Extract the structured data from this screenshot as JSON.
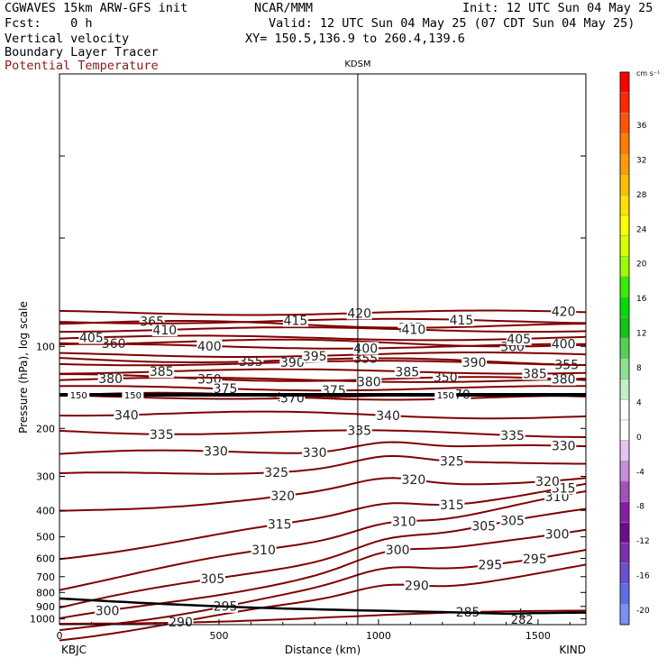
{
  "header": {
    "line1_left": "CGWAVES 15km ARW-GFS init",
    "line1_mid": "NCAR/MMM",
    "line1_right": "Init: 12 UTC Sun 04 May 25",
    "line2_left": "Fcst:    0 h",
    "line2_right": "Valid: 12 UTC Sun 04 May 25 (07 CDT Sun 04 May 25)",
    "line3_left": "Vertical velocity",
    "line3_right": "XY= 150.5,136.9 to 260.4,139.6",
    "line4_left": "Boundary Layer Tracer",
    "line5_left": "Potential Temperature"
  },
  "colors": {
    "theta": "#800000",
    "tracer": "#000000"
  },
  "chart_data": {
    "type": "contour",
    "title": "",
    "xlabel": "Distance (km)",
    "ylabel": "Pressure (hPa), log scale",
    "xlim": [
      0,
      1650
    ],
    "ylim": [
      1050,
      10
    ],
    "yscale": "log",
    "x_ticks": [
      0,
      500,
      1000,
      1500
    ],
    "y_ticks": [
      100,
      200,
      300,
      400,
      500,
      600,
      700,
      800,
      900,
      1000
    ],
    "endpoints": {
      "left": "KBJC",
      "right": "KIND"
    },
    "station_marker": {
      "name": "KDSM",
      "x_km": 935
    },
    "tracer_level": {
      "value": "150",
      "pressure_hPa": 157
    },
    "colorbar": {
      "unit": "cm s⁻¹",
      "ticks": [
        "36",
        "32",
        "28",
        "24",
        "20",
        "16",
        "12",
        "8",
        "4",
        "0",
        "-4",
        "-8",
        "-12",
        "-16",
        "-20"
      ],
      "colors": [
        "#ff0000",
        "#ff2a00",
        "#ff5500",
        "#ff7a00",
        "#ff9b00",
        "#ffbf00",
        "#ffe100",
        "#ffff00",
        "#d7ff00",
        "#9bff00",
        "#35ee00",
        "#00dd00",
        "#11c711",
        "#55d055",
        "#8ee18e",
        "#c3f0c3",
        "#ffffff",
        "#ffffff",
        "#e6c4ef",
        "#c78fd8",
        "#a64fbe",
        "#8a1ca5",
        "#6e0b8a",
        "#7a2fb0",
        "#6a4fd0",
        "#5f6ee6",
        "#7a90f5"
      ]
    },
    "isentropes": [
      {
        "theta": 285,
        "label_x_km": [
          1280
        ]
      },
      {
        "theta": 290,
        "label_x_km": [
          380,
          1120
        ]
      },
      {
        "theta": 295,
        "label_x_km": [
          520,
          1350,
          1490
        ]
      },
      {
        "theta": 300,
        "label_x_km": [
          150,
          1060,
          1560
        ]
      },
      {
        "theta": 305,
        "label_x_km": [
          480,
          1330,
          1420
        ]
      },
      {
        "theta": 310,
        "label_x_km": [
          640,
          1080,
          1560
        ]
      },
      {
        "theta": 315,
        "label_x_km": [
          690,
          1230,
          1580
        ]
      },
      {
        "theta": 320,
        "label_x_km": [
          700,
          1110,
          1530
        ]
      },
      {
        "theta": 325,
        "label_x_km": [
          680,
          1230
        ]
      },
      {
        "theta": 330,
        "label_x_km": [
          490,
          800,
          1580
        ]
      },
      {
        "theta": 335,
        "label_x_km": [
          320,
          940,
          1420
        ]
      },
      {
        "theta": 340,
        "label_x_km": [
          210,
          1030
        ]
      },
      {
        "theta": 345,
        "label_x_km": [
          720
        ]
      },
      {
        "theta": 350,
        "label_x_km": [
          470,
          1210
        ]
      },
      {
        "theta": 355,
        "label_x_km": [
          600,
          960,
          1590
        ]
      },
      {
        "theta": 360,
        "label_x_km": [
          170,
          1420
        ]
      },
      {
        "theta": 365,
        "label_x_km": [
          290,
          1100
        ]
      },
      {
        "theta": 370,
        "label_x_km": [
          730,
          1250
        ]
      },
      {
        "theta": 375,
        "label_x_km": [
          520,
          860
        ]
      },
      {
        "theta": 380,
        "label_x_km": [
          160,
          970,
          1580
        ]
      },
      {
        "theta": 385,
        "label_x_km": [
          320,
          1090,
          1490
        ]
      },
      {
        "theta": 390,
        "label_x_km": [
          730,
          1300
        ]
      },
      {
        "theta": 395,
        "label_x_km": [
          800
        ]
      },
      {
        "theta": 400,
        "label_x_km": [
          470,
          960,
          1580
        ]
      },
      {
        "theta": 405,
        "label_x_km": [
          100,
          1440
        ]
      },
      {
        "theta": 410,
        "label_x_km": [
          330,
          1110
        ]
      },
      {
        "theta": 415,
        "label_x_km": [
          740,
          1260
        ]
      },
      {
        "theta": 420,
        "label_x_km": [
          940,
          1580
        ]
      }
    ],
    "extra_labels": [
      {
        "text": "L",
        "x_km": 1450,
        "pressure_hPa": 960
      },
      {
        "text": "282",
        "x_km": 1450,
        "pressure_hPa": 1010
      }
    ]
  }
}
